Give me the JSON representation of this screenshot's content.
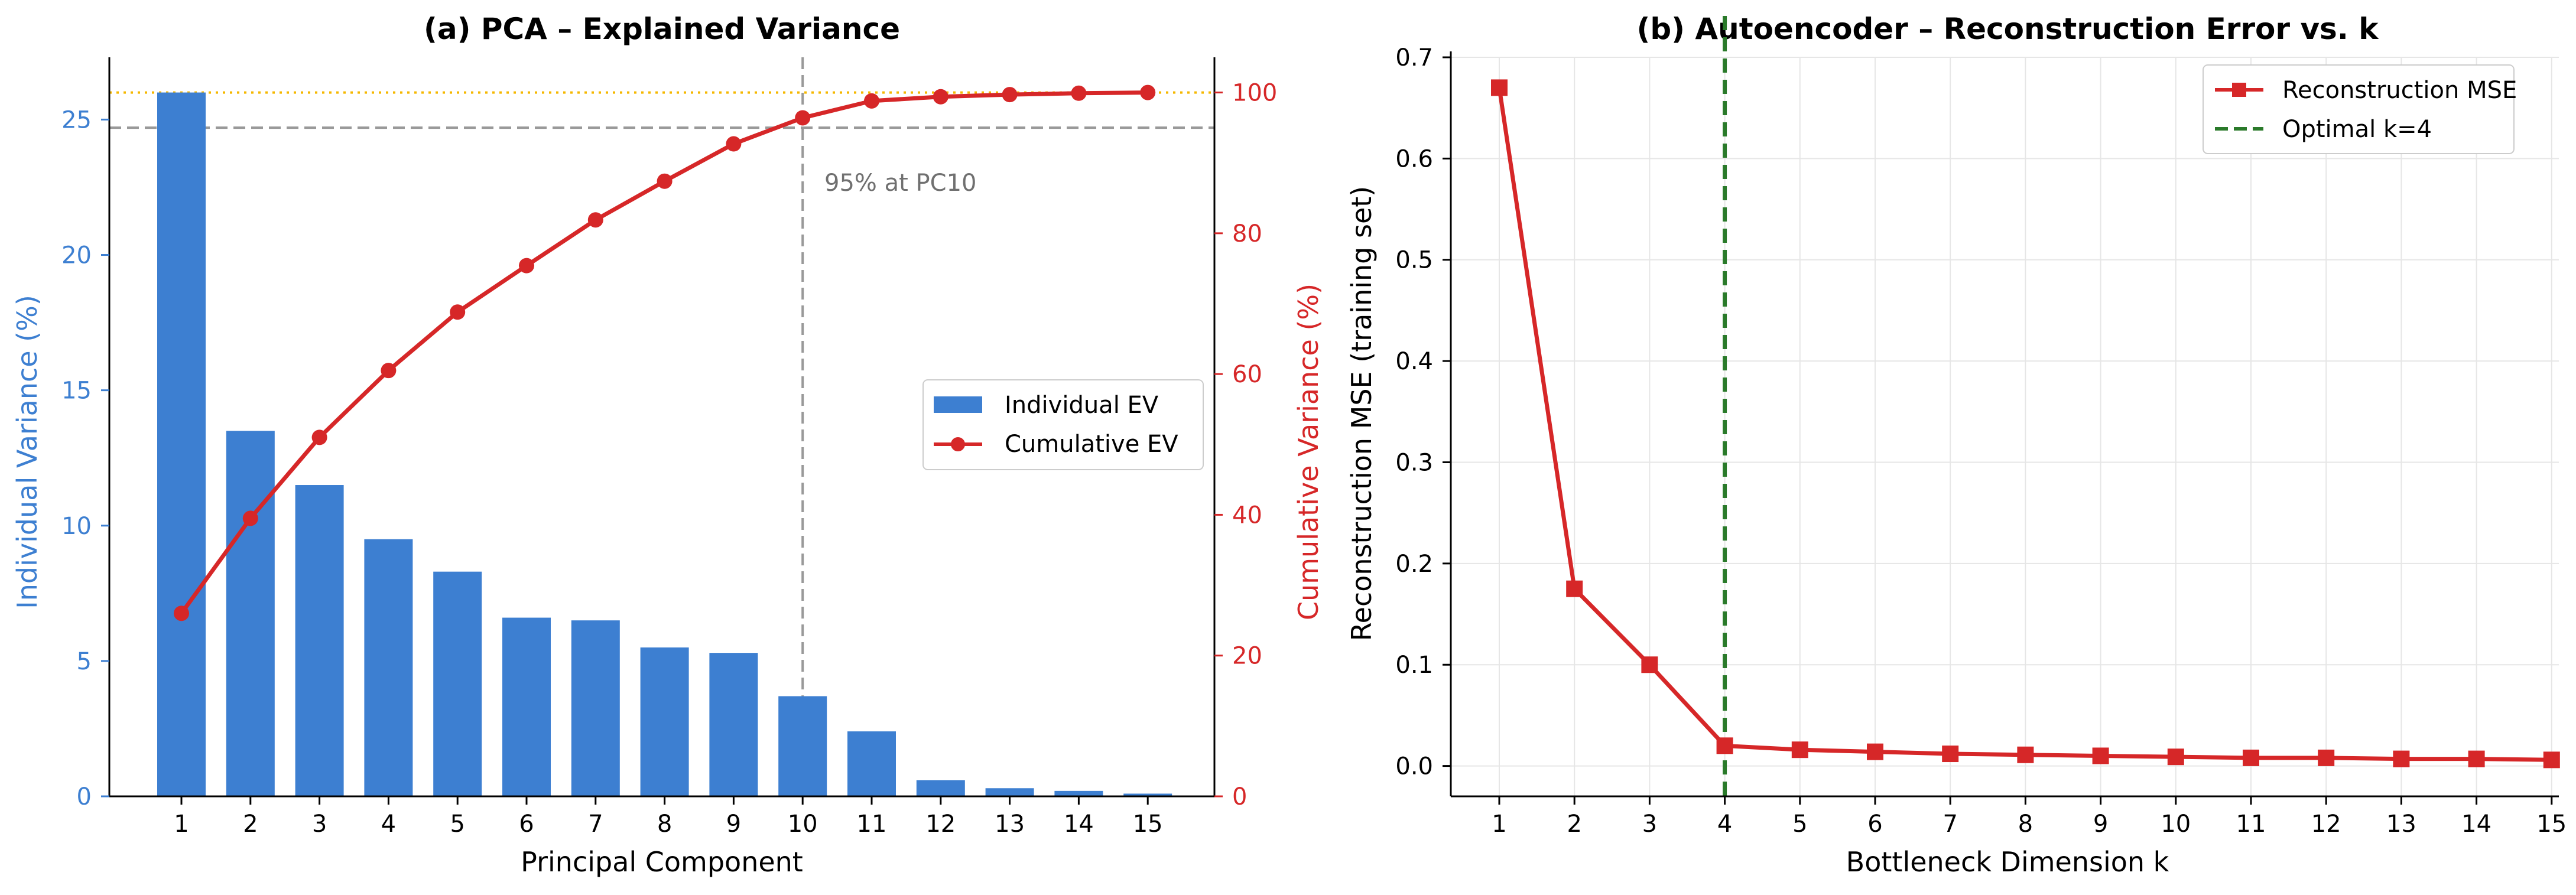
{
  "chart_data": [
    {
      "type": "bar+line",
      "title": "(a) PCA – Explained Variance",
      "xlabel": "Principal Component",
      "ylabel": "Individual Variance (%)",
      "y2label": "Cumulative Variance (%)",
      "categories": [
        "1",
        "2",
        "3",
        "4",
        "5",
        "6",
        "7",
        "8",
        "9",
        "10",
        "11",
        "12",
        "13",
        "14",
        "15"
      ],
      "ylim": [
        0,
        27.3
      ],
      "y2lim": [
        0,
        105
      ],
      "yticks": [
        "0",
        "5",
        "10",
        "15",
        "20",
        "25"
      ],
      "y2ticks": [
        "0",
        "20",
        "40",
        "60",
        "80",
        "100"
      ],
      "series": [
        {
          "name": "Individual EV",
          "type": "bar",
          "axis": "left",
          "values": [
            26.0,
            13.5,
            11.5,
            9.5,
            8.3,
            6.6,
            6.5,
            5.5,
            5.3,
            3.7,
            2.4,
            0.6,
            0.3,
            0.2,
            0.1
          ]
        },
        {
          "name": "Cumulative EV",
          "type": "line",
          "axis": "right",
          "values": [
            26.0,
            39.5,
            51.0,
            60.5,
            68.8,
            75.4,
            81.9,
            87.4,
            92.7,
            96.4,
            98.8,
            99.4,
            99.7,
            99.9,
            100.0
          ]
        }
      ],
      "reference_lines": {
        "vertical_x": 10,
        "horizontal_y2": 95,
        "dotted_top_y2": 100
      },
      "annotation": "95% at PC10",
      "legend_position": "center-right",
      "colors": {
        "bar": "#3d7fd1",
        "line": "#d62728",
        "ref": "#999999",
        "dotted": "#f5b800"
      }
    },
    {
      "type": "line",
      "title": "(b) Autoencoder – Reconstruction Error vs. k",
      "xlabel": "Bottleneck Dimension k",
      "ylabel": "Reconstruction MSE (training set)",
      "x": [
        1,
        2,
        3,
        4,
        5,
        6,
        7,
        8,
        9,
        10,
        11,
        12,
        13,
        14,
        15
      ],
      "xticks": [
        "1",
        "2",
        "3",
        "4",
        "5",
        "6",
        "7",
        "8",
        "9",
        "10",
        "11",
        "12",
        "13",
        "14",
        "15"
      ],
      "ylim": [
        -0.03,
        0.7
      ],
      "yticks": [
        "0.0",
        "0.1",
        "0.2",
        "0.3",
        "0.4",
        "0.5",
        "0.6",
        "0.7"
      ],
      "series": [
        {
          "name": "Reconstruction MSE",
          "values": [
            0.67,
            0.175,
            0.1,
            0.02,
            0.016,
            0.014,
            0.012,
            0.011,
            0.01,
            0.009,
            0.008,
            0.008,
            0.007,
            0.007,
            0.006
          ]
        }
      ],
      "reference_lines": {
        "vertical_x": 4,
        "label": "Optimal k=4"
      },
      "grid": true,
      "legend_position": "top-right",
      "colors": {
        "line": "#d62728",
        "optimal": "#2a7a2a",
        "grid": "#e6e6e6"
      }
    }
  ]
}
